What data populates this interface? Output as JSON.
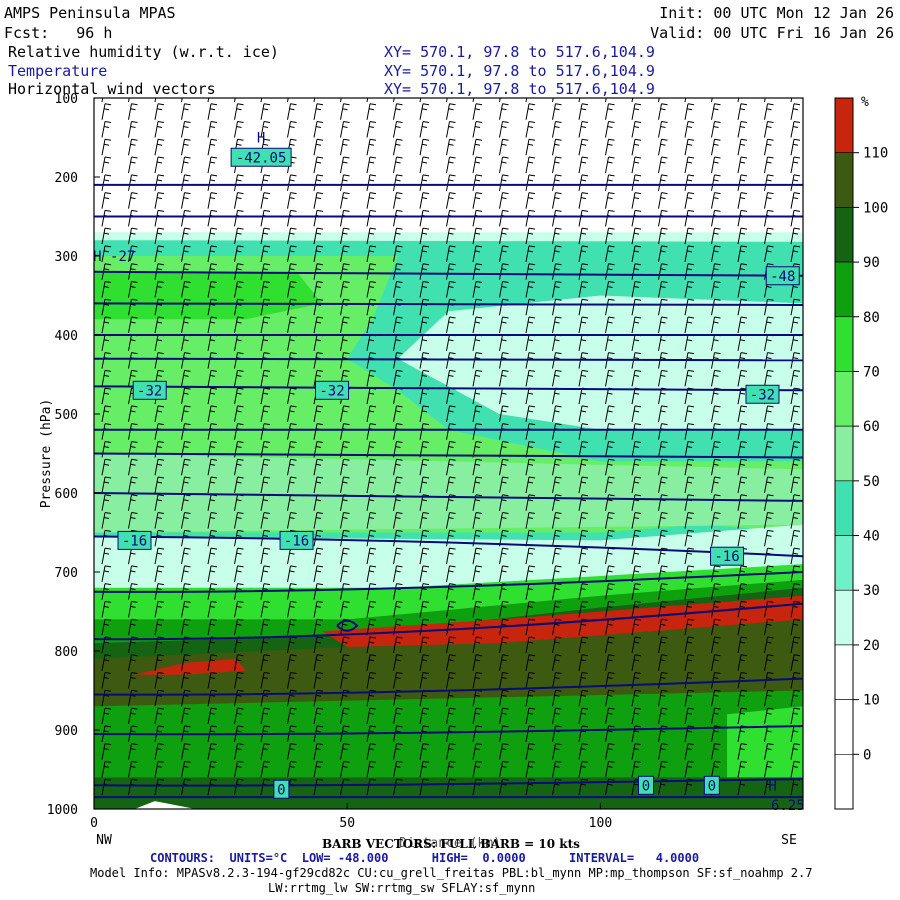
{
  "header": {
    "title": "AMPS Peninsula MPAS",
    "forecast": "Fcst:   96 h",
    "init": "Init: 00 UTC Mon 12 Jan 26",
    "valid": "Valid: 00 UTC Fri 16 Jan 26",
    "fields": [
      {
        "label": "Relative humidity (w.r.t. ice)",
        "xy": "XY= 570.1, 97.8 to 517.6,104.9",
        "color": "#000000"
      },
      {
        "label": "Temperature",
        "xy": "XY= 570.1, 97.8 to 517.6,104.9",
        "color": "#1a1aa0"
      },
      {
        "label": "Horizontal wind vectors",
        "xy": "XY= 570.1, 97.8 to 517.6,104.9",
        "color": "#000000"
      }
    ]
  },
  "colorbar": {
    "unit": "%",
    "labels": [
      "110",
      "100",
      "90",
      "80",
      "70",
      "60",
      "50",
      "40",
      "30",
      "20",
      "10",
      "0"
    ],
    "colors": [
      "#c8250f",
      "#3d5a10",
      "#146414",
      "#0fa00f",
      "#30e030",
      "#66ee66",
      "#88eea0",
      "#40e0b0",
      "#6ff0c8",
      "#c8ffea",
      "#ffffff",
      "#ffffff",
      "#ffffff"
    ]
  },
  "chart_data": {
    "type": "heatmap",
    "title": "Relative humidity (w.r.t. ice)",
    "xlabel": "Distance (km)",
    "ylabel": "Pressure (hPa)",
    "xlim": [
      0,
      140
    ],
    "ylim": [
      1000,
      100
    ],
    "x_ticks": [
      "0",
      "50",
      "100"
    ],
    "y_ticks": [
      "100",
      "200",
      "300",
      "400",
      "500",
      "600",
      "700",
      "800",
      "900",
      "1000"
    ],
    "x_endpoints": {
      "left": "NW",
      "right": "SE"
    },
    "temperature_contour_labels": [
      {
        "label": "H",
        "x": 33,
        "p": 150
      },
      {
        "label": "-42.05",
        "x": 33,
        "p": 175
      },
      {
        "label": "H -27",
        "x": 4,
        "p": 300
      },
      {
        "label": "-48",
        "x": 136,
        "p": 325
      },
      {
        "label": "-32",
        "x": 11,
        "p": 470
      },
      {
        "label": "-32",
        "x": 47,
        "p": 470
      },
      {
        "label": "-32",
        "x": 132,
        "p": 475
      },
      {
        "label": "-16",
        "x": 8,
        "p": 660
      },
      {
        "label": "-16",
        "x": 40,
        "p": 660
      },
      {
        "label": "-16",
        "x": 125,
        "p": 680
      },
      {
        "label": "0",
        "x": 37,
        "p": 975
      },
      {
        "label": "0",
        "x": 109,
        "p": 970
      },
      {
        "label": "0",
        "x": 122,
        "p": 970
      },
      {
        "label": "H",
        "x": 134,
        "p": 970
      },
      {
        "label": "6.25",
        "x": 137,
        "p": 995
      }
    ]
  },
  "footer": {
    "barb_note": "BARB VECTORS: FULL BARB = 10 kts",
    "contours": "CONTOURS:  UNITS=°C  LOW= -48.000      HIGH=  0.0000      INTERVAL=   4.0000",
    "model_info": "Model Info: MPASv8.2.3-194-gf29cd82c CU:cu_grell_freitas PBL:bl_mynn MP:mp_thompson SF:sf_noahmp 2.7",
    "model_info2": "LW:rrtmg_lw SW:rrtmg_sw SFLAY:sf_mynn"
  }
}
